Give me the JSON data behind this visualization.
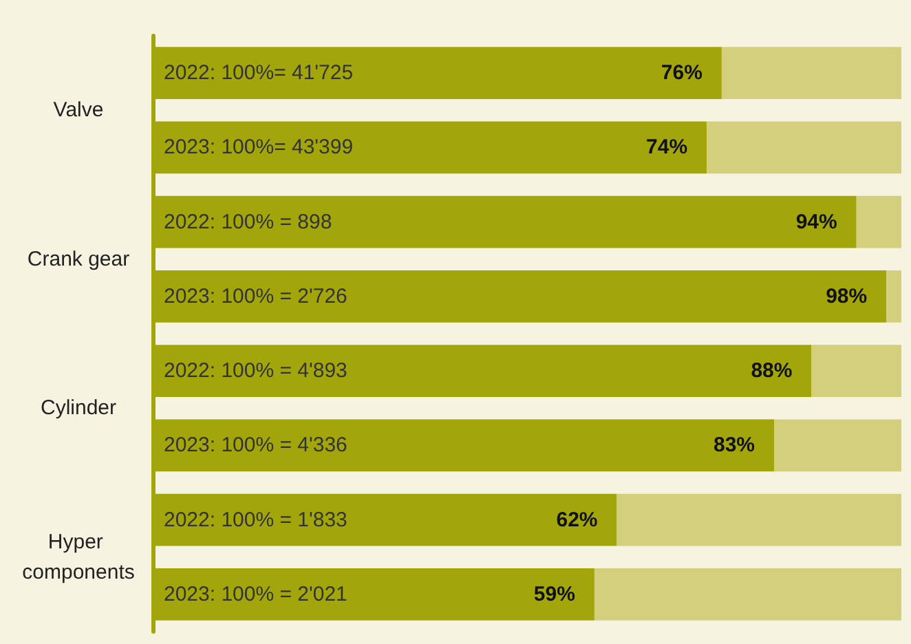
{
  "chart_data": {
    "type": "bar",
    "orientation": "horizontal",
    "stacked": true,
    "categories": [
      "2022: 100%= 41'725",
      "2023: 100%= 43'399",
      "2022: 100% = 898",
      "2023: 100% = 2'726",
      "2022: 100% = 4'893",
      "2023: 100% = 4'336",
      "2022: 100% = 1'833",
      "2023: 100% = 2'021"
    ],
    "series": [
      {
        "color": "#a3a60b",
        "values": [
          76,
          74,
          94,
          98,
          88,
          83,
          62,
          59
        ],
        "value_labels": [
          "76%",
          "74%",
          "94%",
          "98%",
          "88%",
          "83%",
          "62%",
          "59%"
        ]
      },
      {
        "color": "#d3cf7d",
        "values": [
          24,
          26,
          6,
          2,
          12,
          17,
          38,
          41
        ]
      }
    ],
    "xlim": [
      0,
      100
    ],
    "tick_labels": "y",
    "annotations": [
      "Valve",
      "Crank gear",
      "Cylinder",
      "Hyper components"
    ]
  }
}
